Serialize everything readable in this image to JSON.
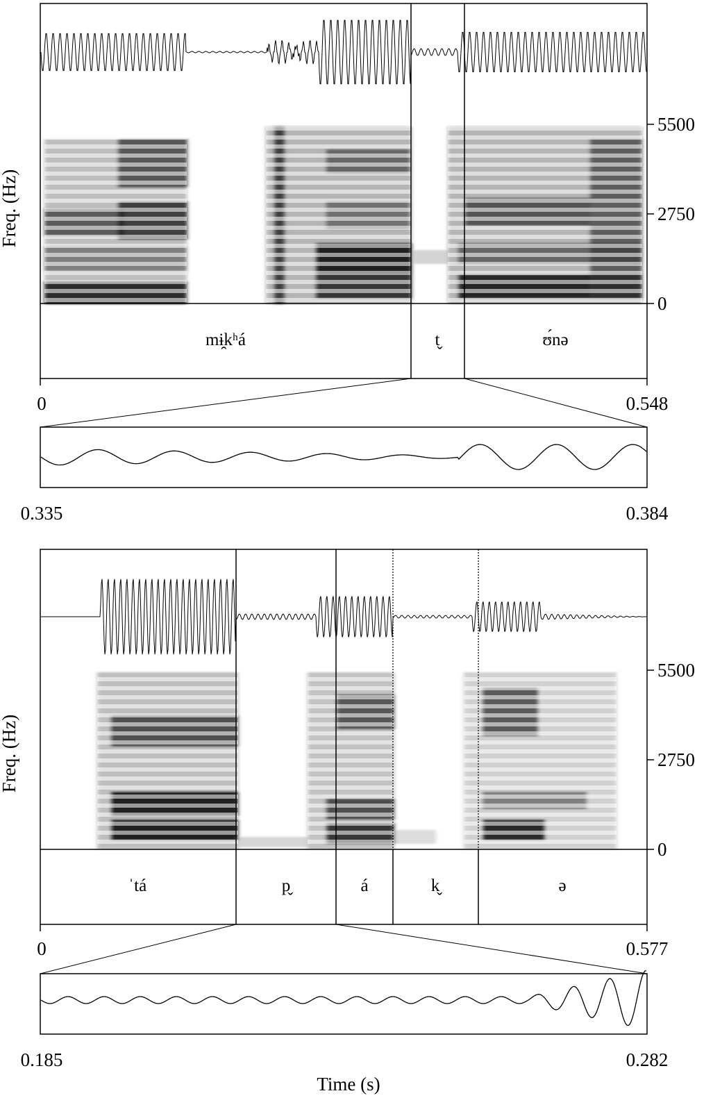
{
  "panels": [
    {
      "id": "top",
      "y_axis_label": "Freq. (Hz)",
      "freq_ticks": [
        "5500",
        "2750",
        "0"
      ],
      "time_start": "0",
      "time_end": "0.548",
      "segments": [
        {
          "label": "mɨ̯kʰá",
          "start": 0.0,
          "end": 0.335,
          "boundary": "solid"
        },
        {
          "label": "t̬",
          "start": 0.335,
          "end": 0.384,
          "boundary": "solid"
        },
        {
          "label": "ʊ́nə",
          "start": 0.384,
          "end": 0.548,
          "boundary": "solid"
        }
      ],
      "zoom": {
        "start": "0.335",
        "end": "0.384"
      }
    },
    {
      "id": "bottom",
      "y_axis_label": "Freq. (Hz)",
      "freq_ticks": [
        "5500",
        "2750",
        "0"
      ],
      "time_start": "0",
      "time_end": "0.577",
      "segments": [
        {
          "label": "ˈtá",
          "start": 0.0,
          "end": 0.185,
          "boundary": "solid"
        },
        {
          "label": "p̬",
          "start": 0.185,
          "end": 0.282,
          "boundary": "solid"
        },
        {
          "label": "á",
          "start": 0.282,
          "end": 0.336,
          "boundary": "dotted"
        },
        {
          "label": "k̬",
          "start": 0.336,
          "end": 0.417,
          "boundary": "dotted"
        },
        {
          "label": "ə",
          "start": 0.417,
          "end": 0.577,
          "boundary": "none"
        }
      ],
      "zoom": {
        "start": "0.185",
        "end": "0.282"
      }
    }
  ],
  "x_axis_label": "Time (s)"
}
